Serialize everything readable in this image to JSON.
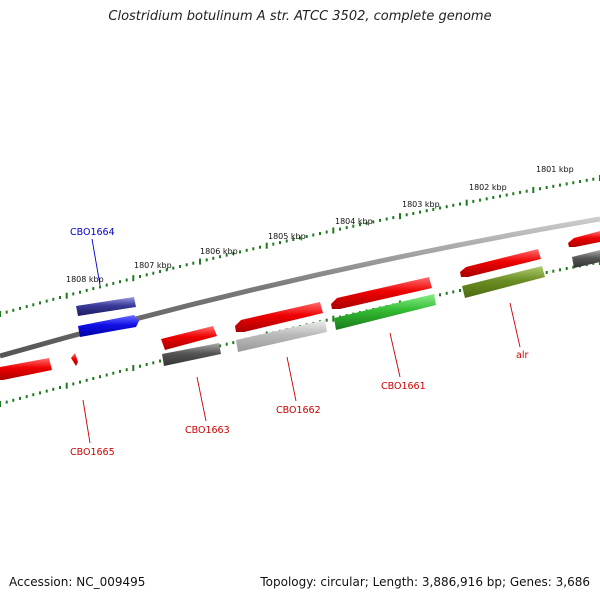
{
  "title": "Clostridium botulinum A str. ATCC 3502, complete genome",
  "footer": {
    "accession": "Accession: NC_009495",
    "summary": "Topology: circular; Length: 3,886,916 bp; Genes: 3,686"
  },
  "ruler": {
    "tick_labels": [
      "1808 kbp",
      "1807 kbp",
      "1806 kbp",
      "1805 kbp",
      "1804 kbp",
      "1803 kbp",
      "1802 kbp",
      "1801 kbp"
    ],
    "tick_color": "#1e7a1e"
  },
  "genes": [
    {
      "label": "CBO1664",
      "color": "#0000cc"
    },
    {
      "label": "CBO1665",
      "color": "#cc0000"
    },
    {
      "label": "CBO1663",
      "color": "#cc0000"
    },
    {
      "label": "CBO1662",
      "color": "#cc0000"
    },
    {
      "label": "CBO1661",
      "color": "#cc0000"
    },
    {
      "label": "alr",
      "color": "#cc0000"
    }
  ],
  "colors": {
    "cds_red": "#e00000",
    "cds_blue": "#1010e8",
    "backbone": "#808080",
    "dark_grey": "#555555",
    "light_grey": "#bbbbbb",
    "green": "#33bb33",
    "olive": "#6b8e23",
    "navy": "#2a2a8a"
  }
}
